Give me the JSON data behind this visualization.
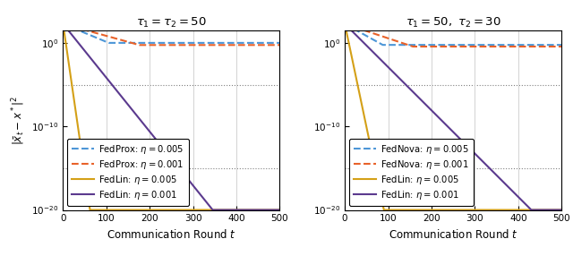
{
  "subplot1_title": "$\\tau_1 = \\tau_2 = 50$",
  "subplot2_title": "$\\tau_1 = 50,\\ \\tau_2 = 30$",
  "xlabel": "Communication Round $t$",
  "ylabel": "$|\\bar{x}_t - x^*|^2$",
  "xlim": [
    0,
    500
  ],
  "ylim_bottom": 1e-20,
  "ylim_top": 30.0,
  "colors": {
    "blue": "#4C96D7",
    "orange": "#E8622A",
    "yellow": "#D4A017",
    "purple": "#5B3A8E"
  },
  "subplot1": {
    "label1": "FedProx: $\\eta = 0.005$",
    "label2": "FedProx: $\\eta = 0.001$",
    "label3": "FedLin: $\\eta = 0.005$",
    "label4": "FedLin: $\\eta = 0.001$",
    "baseline_level1": 1.05,
    "baseline_level2": 0.58,
    "baseline_decay1": 20,
    "baseline_decay2": 30,
    "fedlin_t1": 62,
    "fedlin_t2": 345,
    "start_val_log": 2.3
  },
  "subplot2": {
    "label1": "FedNova: $\\eta = 0.005$",
    "label2": "FedNova: $\\eta = 0.001$",
    "label3": "FedLin: $\\eta = 0.005$",
    "label4": "FedLin: $\\eta = 0.001$",
    "baseline_level1": 0.6,
    "baseline_level2": 0.38,
    "baseline_decay1": 15,
    "baseline_decay2": 25,
    "fedlin_t1": 90,
    "fedlin_t2": 430,
    "start_val_log": 2.3
  },
  "dotted_lines_log": [
    -5,
    -15
  ],
  "yticks_log": [
    0,
    -10,
    -20
  ],
  "xticks": [
    0,
    100,
    200,
    300,
    400,
    500
  ],
  "legend_fontsize": 7.2,
  "title_fontsize": 9.5,
  "tick_fontsize": 7.5,
  "label_fontsize": 8.5,
  "linewidth": 1.5
}
